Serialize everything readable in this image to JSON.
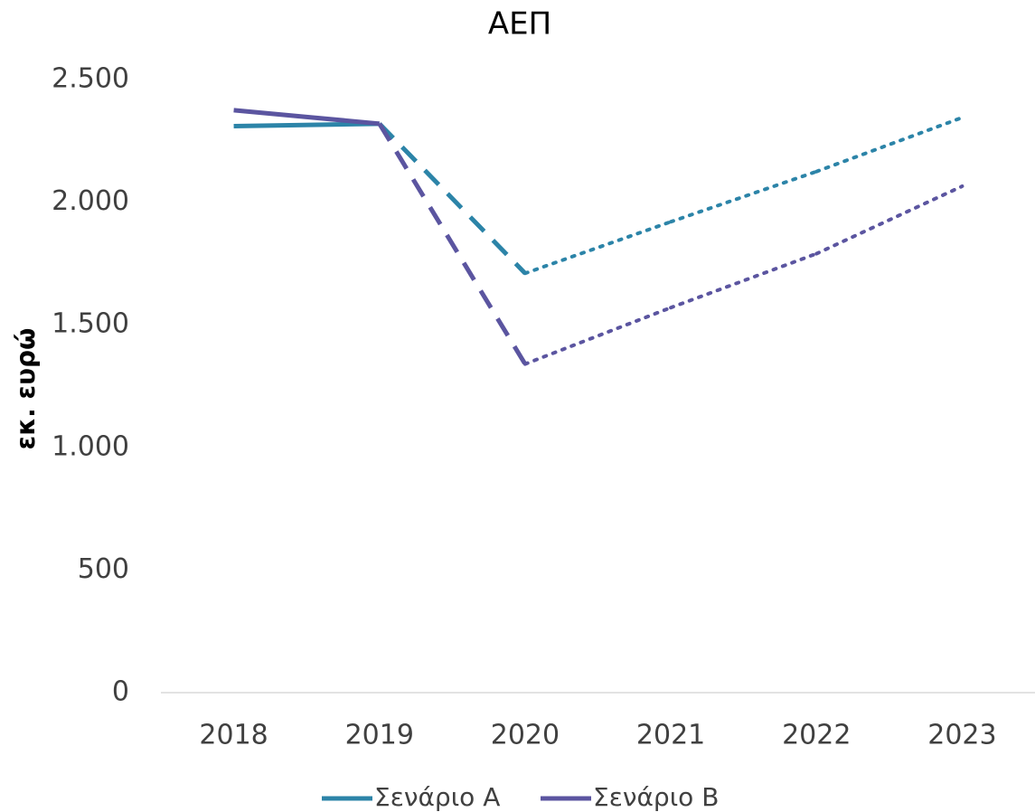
{
  "chart_data": {
    "type": "line",
    "title": "ΑΕΠ",
    "y_label": "εκ. ευρώ",
    "categories": [
      "2018",
      "2019",
      "2020",
      "2021",
      "2022",
      "2023"
    ],
    "segment_styles": [
      "solid",
      "dashed",
      "dotted",
      "dotted",
      "dotted"
    ],
    "series": [
      {
        "name": "Σενάριο Α",
        "color": "#2c84a8",
        "values": [
          2310,
          2320,
          1710,
          1920,
          2125,
          2345
        ]
      },
      {
        "name": "Σενάριο Β",
        "color": "#5b55a0",
        "values": [
          2375,
          2320,
          1340,
          1570,
          1790,
          2065
        ]
      }
    ],
    "ylim": [
      0,
      2500
    ],
    "yticks": [
      0,
      500,
      {
        "value": 1000,
        "label": "1.000"
      },
      {
        "value": 1500,
        "label": "1.500"
      },
      {
        "value": 2000,
        "label": "2.000"
      },
      {
        "value": 2500,
        "label": "2.500"
      }
    ],
    "grid": false,
    "legend": "bottom"
  }
}
